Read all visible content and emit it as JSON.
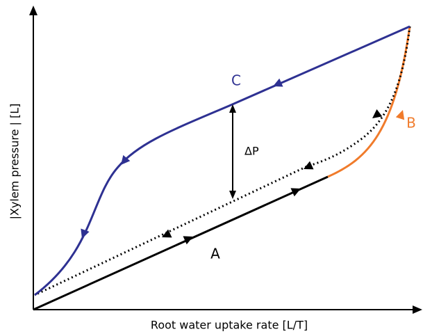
{
  "axes": {
    "x_label": "Root water uptake rate [L/T]",
    "y_label": "|Xylem pressure | [L]"
  },
  "curves": {
    "a": "A",
    "b": "B",
    "c": "C"
  },
  "annotation": "ΔP"
}
